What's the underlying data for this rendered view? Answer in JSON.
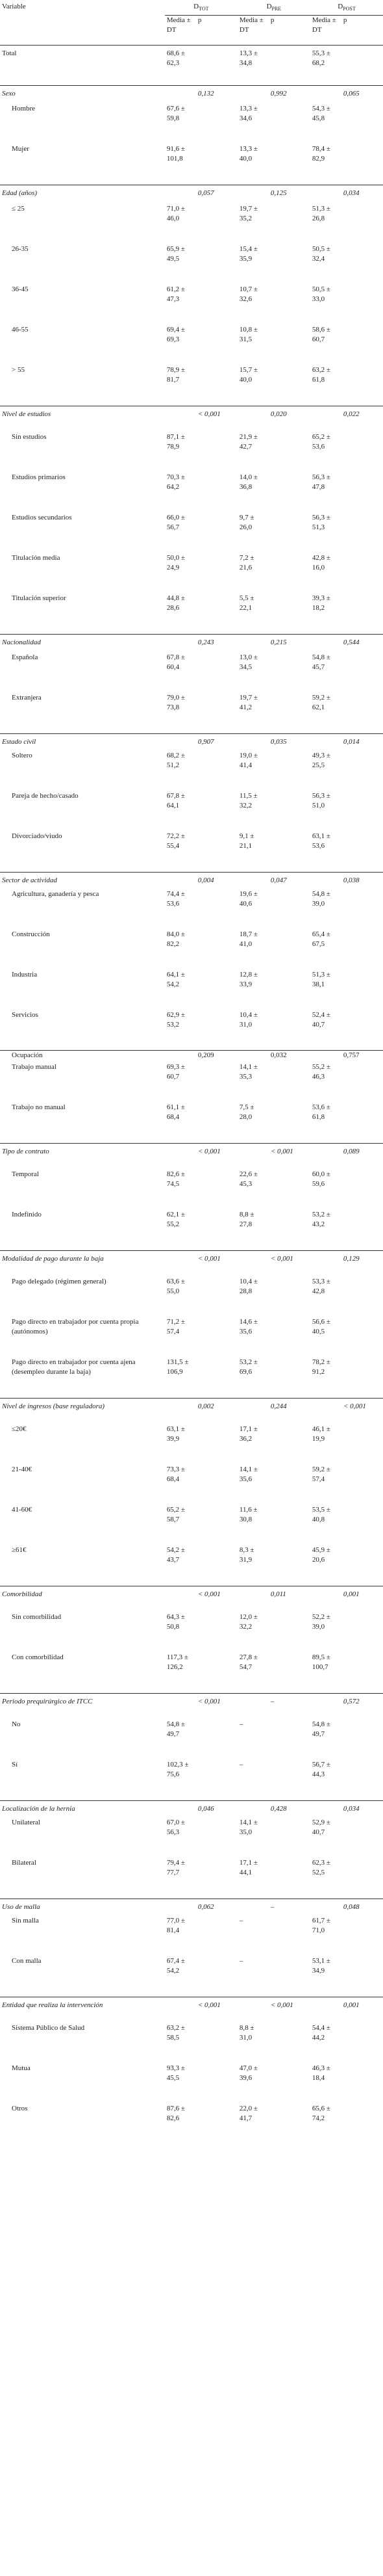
{
  "headers": {
    "variable": "Variable",
    "d_tot_main": "D",
    "d_tot_sub": "TOT",
    "d_pre_main": "D",
    "d_pre_sub": "PRE",
    "d_post_main": "D",
    "d_post_sub": "POST",
    "media_dt": "Media ± DT",
    "p": "p"
  },
  "rows": [
    {
      "type": "total",
      "label": "Total",
      "tot": "68,6 ± 62,3",
      "ptot": "",
      "pre": "13,3 ± 34,8",
      "ppre": "",
      "post": "55,3 ± 68,2",
      "ppost": "",
      "h": 62
    },
    {
      "type": "cat",
      "label": "Sexo",
      "tot": "",
      "ptot": "0,132",
      "pre": "",
      "ppre": "0,992",
      "post": "",
      "ppost": "0,065",
      "h": 28
    },
    {
      "type": "row",
      "label": "Hombre",
      "tot": "67,6 ± 59,8",
      "ptot": "",
      "pre": "13,3 ± 34,6",
      "ppre": "",
      "post": "54,3 ± 45,8",
      "ppost": "",
      "h": 62
    },
    {
      "type": "row",
      "label": "Mujer",
      "tot": "91,6 ± 101,8",
      "ptot": "",
      "pre": "13,3 ± 40,0",
      "ppre": "",
      "post": "78,4 ± 82,9",
      "ppost": "",
      "h": 63
    },
    {
      "type": "cat",
      "label": "Edad (años)",
      "tot": "",
      "ptot": "0,057",
      "pre": "",
      "ppre": "0,125",
      "post": "",
      "ppost": "0,034",
      "h": 29
    },
    {
      "type": "row",
      "label": "≤ 25",
      "tot": "71,0 ± 46,0",
      "ptot": "",
      "pre": "19,7 ± 35,2",
      "ppre": "",
      "post": "51,3 ± 26,8",
      "ppost": "",
      "h": 62
    },
    {
      "type": "row",
      "label": "26-35",
      "tot": "65,9 ± 49,5",
      "ptot": "",
      "pre": "15,4 ± 35,9",
      "ppre": "",
      "post": "50,5 ± 32,4",
      "ppost": "",
      "h": 62
    },
    {
      "type": "row",
      "label": "36-45",
      "tot": "61,2 ± 47,3",
      "ptot": "",
      "pre": "10,7 ± 32,6",
      "ppre": "",
      "post": "50,5 ± 33,0",
      "ppost": "",
      "h": 62
    },
    {
      "type": "row",
      "label": "46-55",
      "tot": "69,4 ± 69,3",
      "ptot": "",
      "pre": "10,8 ± 31,5",
      "ppre": "",
      "post": "58,6 ± 60,7",
      "ppost": "",
      "h": 62
    },
    {
      "type": "row",
      "label": "> 55",
      "tot": "78,9 ± 81,7",
      "ptot": "",
      "pre": "15,7 ± 40,0",
      "ppre": "",
      "post": "63,2 ± 61,8",
      "ppost": "",
      "h": 63
    },
    {
      "type": "cat",
      "label": "Nivel de estudios",
      "tot": "",
      "ptot": "< 0,001",
      "pre": "",
      "ppre": "0,020",
      "post": "",
      "ppost": "0,022",
      "h": 40
    },
    {
      "type": "row",
      "label": "Sin estudios",
      "tot": "87,1 ± 78,9",
      "ptot": "",
      "pre": "21,9 ± 42,7",
      "ppre": "",
      "post": "65,2 ± 53,6",
      "ppost": "",
      "h": 62
    },
    {
      "type": "row",
      "label": "Estudios primarios",
      "tot": "70,3 ± 64,2",
      "ptot": "",
      "pre": "14,0 ± 36,8",
      "ppre": "",
      "post": "56,3 ± 47,8",
      "ppost": "",
      "h": 62
    },
    {
      "type": "row",
      "label": "Estudios secundarios",
      "tot": "66,0 ± 56,7",
      "ptot": "",
      "pre": "9,7 ± 26,0",
      "ppre": "",
      "post": "56,3 ± 51,3",
      "ppost": "",
      "h": 62
    },
    {
      "type": "row",
      "label": "Titulación media",
      "tot": "50,0 ± 24,9",
      "ptot": "",
      "pre": "7,2 ± 21,6",
      "ppre": "",
      "post": "42,8 ± 16,0",
      "ppost": "",
      "h": 62
    },
    {
      "type": "row",
      "label": "Titulación superior",
      "tot": "44,8 ± 28,6",
      "ptot": "",
      "pre": "5,5 ± 22,1",
      "ppre": "",
      "post": "39,3 ± 18,2",
      "ppost": "",
      "h": 63
    },
    {
      "type": "cat",
      "label": "Nacionalidad",
      "tot": "",
      "ptot": "0,243",
      "pre": "",
      "ppre": "0,215",
      "post": "",
      "ppost": "0,544",
      "h": 28
    },
    {
      "type": "row",
      "label": "Española",
      "tot": "67,8 ± 60,4",
      "ptot": "",
      "pre": "13,0 ± 34,5",
      "ppre": "",
      "post": "54,8 ± 45,7",
      "ppost": "",
      "h": 62
    },
    {
      "type": "row",
      "label": "Extranjera",
      "tot": "79,0 ± 73,8",
      "ptot": "",
      "pre": "19,7 ± 41,2",
      "ppre": "",
      "post": "59,2 ± 62,1",
      "ppost": "",
      "h": 63
    },
    {
      "type": "cat",
      "label": "Estado civil",
      "tot": "",
      "ptot": "0,907",
      "pre": "",
      "ppre": "0,035",
      "post": "",
      "ppost": "0,014",
      "h": 26
    },
    {
      "type": "row",
      "label": "Soltero",
      "tot": "68,2 ± 51,2",
      "ptot": "",
      "pre": "19,0 ± 41,4",
      "ppre": "",
      "post": "49,3 ± 25,5",
      "ppost": "",
      "h": 62
    },
    {
      "type": "row",
      "label": "Pareja de hecho/casado",
      "tot": "67,8 ± 64,1",
      "ptot": "",
      "pre": "11,5 ± 32,2",
      "ppre": "",
      "post": "56,3 ± 51,0",
      "ppost": "",
      "h": 62
    },
    {
      "type": "row",
      "label": "Divorciado/viudo",
      "tot": "72,2 ± 55,4",
      "ptot": "",
      "pre": "9,1 ± 21,1",
      "ppre": "",
      "post": "63,1 ± 53,6",
      "ppost": "",
      "h": 63
    },
    {
      "type": "cat",
      "label": "Sector de actividad",
      "tot": "",
      "ptot": "0,004",
      "pre": "",
      "ppre": "0,047",
      "post": "",
      "ppost": "0,038",
      "h": 26
    },
    {
      "type": "row",
      "label": "Agricultura, ganadería y pesca",
      "tot": "74,4 ± 53,6",
      "ptot": "",
      "pre": "19,6 ± 40,6",
      "ppre": "",
      "post": "54,8 ± 39,0",
      "ppost": "",
      "h": 62
    },
    {
      "type": "row",
      "label": "Construcción",
      "tot": "84,0 ± 82,2",
      "ptot": "",
      "pre": "18,7 ± 41,0",
      "ppre": "",
      "post": "65,4 ± 67,5",
      "ppost": "",
      "h": 62
    },
    {
      "type": "row",
      "label": "Industria",
      "tot": "64,1 ± 54,2",
      "ptot": "",
      "pre": "12,8 ± 33,9",
      "ppre": "",
      "post": "51,3 ± 38,1",
      "ppost": "",
      "h": 62
    },
    {
      "type": "row",
      "label": "Servicios",
      "tot": "62,9 ± 53,2",
      "ptot": "",
      "pre": "10,4 ± 31,0",
      "ppre": "",
      "post": "52,4 ± 40,7",
      "ppost": "",
      "h": 62
    },
    {
      "type": "row",
      "label": "Ocupación",
      "tot": "",
      "ptot": "0,209",
      "pre": "",
      "ppre": "0,032",
      "post": "",
      "ppost": "0,757",
      "h": 18,
      "topline": true
    },
    {
      "type": "row",
      "label": "Trabajo manual",
      "tot": "69,3 ± 60,7",
      "ptot": "",
      "pre": "14,1 ± 35,3",
      "ppre": "",
      "post": "55,2 ± 46,3",
      "ppost": "",
      "h": 62
    },
    {
      "type": "row",
      "label": "Trabajo no manual",
      "tot": "61,1 ± 68,4",
      "ptot": "",
      "pre": "7,5 ± 28,0",
      "ppre": "",
      "post": "53,6 ± 61,8",
      "ppost": "",
      "h": 63
    },
    {
      "type": "cat",
      "label": "Tipo de contrato",
      "tot": "",
      "ptot": "< 0,001",
      "pre": "",
      "ppre": "< 0,001",
      "post": "",
      "ppost": "0,089",
      "h": 40
    },
    {
      "type": "row",
      "label": "Temporal",
      "tot": "82,6 ± 74,5",
      "ptot": "",
      "pre": "22,6 ± 45,3",
      "ppre": "",
      "post": "60,0 ± 59,6",
      "ppost": "",
      "h": 62
    },
    {
      "type": "row",
      "label": "Indefinido",
      "tot": "62,1 ± 55,2",
      "ptot": "",
      "pre": "8,8 ± 27,8",
      "ppre": "",
      "post": "53,2 ± 43,2",
      "ppost": "",
      "h": 63
    },
    {
      "type": "cat",
      "label": "Modalidad de pago durante la baja",
      "tot": "",
      "ptot": "< 0,001",
      "pre": "",
      "ppre": "< 0,001",
      "post": "",
      "ppost": "0,129",
      "h": 40
    },
    {
      "type": "row",
      "label": "Pago delegado (régimen general)",
      "tot": "63,6 ± 55,0",
      "ptot": "",
      "pre": "10,4 ± 28,8",
      "ppre": "",
      "post": "53,3 ± 42,8",
      "ppost": "",
      "h": 62
    },
    {
      "type": "row",
      "label": "Pago directo en trabajador por cuenta propia (autónomos)",
      "tot": "71,2 ± 57,4",
      "ptot": "",
      "pre": "14,6 ± 35,6",
      "ppre": "",
      "post": "56,6 ± 40,5",
      "ppost": "",
      "h": 62
    },
    {
      "type": "row",
      "label": "Pago directo en trabajador por cuenta ajena (desempleo durante la baja)",
      "tot": "131,5 ± 106,9",
      "ptot": "",
      "pre": "53,2 ± 69,6",
      "ppre": "",
      "post": "78,2 ± 91,2",
      "ppost": "",
      "h": 63
    },
    {
      "type": "cat",
      "label": "Nivel de ingresos (base reguladora)",
      "tot": "",
      "ptot": "0,002",
      "pre": "",
      "ppre": "0,244",
      "post": "",
      "ppost": "< 0,001",
      "h": 40
    },
    {
      "type": "row",
      "label": "≤20€",
      "tot": "63,1 ± 39,9",
      "ptot": "",
      "pre": "17,1 ± 36,2",
      "ppre": "",
      "post": "46,1 ± 19,9",
      "ppost": "",
      "h": 62
    },
    {
      "type": "row",
      "label": "21-40€",
      "tot": "73,3 ± 68,4",
      "ptot": "",
      "pre": "14,1 ± 35,6",
      "ppre": "",
      "post": "59,2 ± 57,4",
      "ppost": "",
      "h": 62
    },
    {
      "type": "row",
      "label": "41-60€",
      "tot": "65,2 ± 58,7",
      "ptot": "",
      "pre": "11,6 ± 30,8",
      "ppre": "",
      "post": "53,5 ± 40,8",
      "ppost": "",
      "h": 62
    },
    {
      "type": "row",
      "label": "≥61€",
      "tot": "54,2 ± 43,7",
      "ptot": "",
      "pre": "8,3 ± 31,9",
      "ppre": "",
      "post": "45,9 ± 20,6",
      "ppost": "",
      "h": 63
    },
    {
      "type": "cat",
      "label": "Comorbilidad",
      "tot": "",
      "ptot": "< 0,001",
      "pre": "",
      "ppre": "0,011",
      "post": "",
      "ppost": "0,001",
      "h": 40
    },
    {
      "type": "row",
      "label": "Sin comorbilidad",
      "tot": "64,3 ± 50,8",
      "ptot": "",
      "pre": "12,0 ± 32,2",
      "ppre": "",
      "post": "52,2 ± 39,0",
      "ppost": "",
      "h": 62
    },
    {
      "type": "row",
      "label": "Con comorbilidad",
      "tot": "117,3 ± 126,2",
      "ptot": "",
      "pre": "27,8 ± 54,7",
      "ppre": "",
      "post": "89,5 ± 100,7",
      "ppost": "",
      "h": 63
    },
    {
      "type": "cat",
      "label": "Periodo prequirúrgico de ITCC",
      "tot": "",
      "ptot": "< 0,001",
      "pre": "",
      "ppre": "–",
      "post": "",
      "ppost": "0,572",
      "h": 40
    },
    {
      "type": "row",
      "label": "No",
      "tot": "54,8 ± 49,7",
      "ptot": "",
      "pre": "–",
      "ppre": "",
      "post": "54,8 ± 49,7",
      "ppost": "",
      "h": 62
    },
    {
      "type": "row",
      "label": "Sí",
      "tot": "102,3 ± 75,6",
      "ptot": "",
      "pre": "–",
      "ppre": "",
      "post": "56,7 ± 44,3",
      "ppost": "",
      "h": 63
    },
    {
      "type": "cat",
      "label": "Localización de la hernia",
      "tot": "",
      "ptot": "0,046",
      "pre": "",
      "ppre": "0,428",
      "post": "",
      "ppost": "0,034",
      "h": 26
    },
    {
      "type": "row",
      "label": "Unilateral",
      "tot": "67,0 ± 56,3",
      "ptot": "",
      "pre": "14,1 ± 35,0",
      "ppre": "",
      "post": "52,9 ± 40,7",
      "ppost": "",
      "h": 62
    },
    {
      "type": "row",
      "label": "Bilateral",
      "tot": "79,4 ± 77,7",
      "ptot": "",
      "pre": "17,1 ± 44,1",
      "ppre": "",
      "post": "62,3 ± 52,5",
      "ppost": "",
      "h": 63
    },
    {
      "type": "cat",
      "label": "Uso de malla",
      "tot": "",
      "ptot": "0,062",
      "pre": "",
      "ppre": "–",
      "post": "",
      "ppost": "0,048",
      "h": 26
    },
    {
      "type": "row",
      "label": "Sin malla",
      "tot": "77,0 ± 81,4",
      "ptot": "",
      "pre": "–",
      "ppre": "",
      "post": "61,7 ± 71,0",
      "ppost": "",
      "h": 62
    },
    {
      "type": "row",
      "label": "Con malla",
      "tot": "67,4 ± 54,2",
      "ptot": "",
      "pre": "–",
      "ppre": "",
      "post": "53,1 ± 34,9",
      "ppost": "",
      "h": 63
    },
    {
      "type": "cat",
      "label": "Entidad que realiza la intervención",
      "tot": "",
      "ptot": "< 0,001",
      "pre": "",
      "ppre": "< 0,001",
      "post": "",
      "ppost": "0,001",
      "h": 40
    },
    {
      "type": "row",
      "label": "Sistema Público de Salud",
      "tot": "63,2 ± 58,5",
      "ptot": "",
      "pre": "8,8 ± 31,0",
      "ppre": "",
      "post": "54,4 ± 44,2",
      "ppost": "",
      "h": 62
    },
    {
      "type": "row",
      "label": "Mutua",
      "tot": "93,3 ± 45,5",
      "ptot": "",
      "pre": "47,0 ± 39,6",
      "ppre": "",
      "post": "46,3 ± 18,4",
      "ppost": "",
      "h": 62
    },
    {
      "type": "row",
      "label": "Otros",
      "tot": "87,6 ± 82,6",
      "ptot": "",
      "pre": "22,0 ± 41,7",
      "ppre": "",
      "post": "65,6 ± 74,2",
      "ppost": "",
      "h": 63
    }
  ]
}
